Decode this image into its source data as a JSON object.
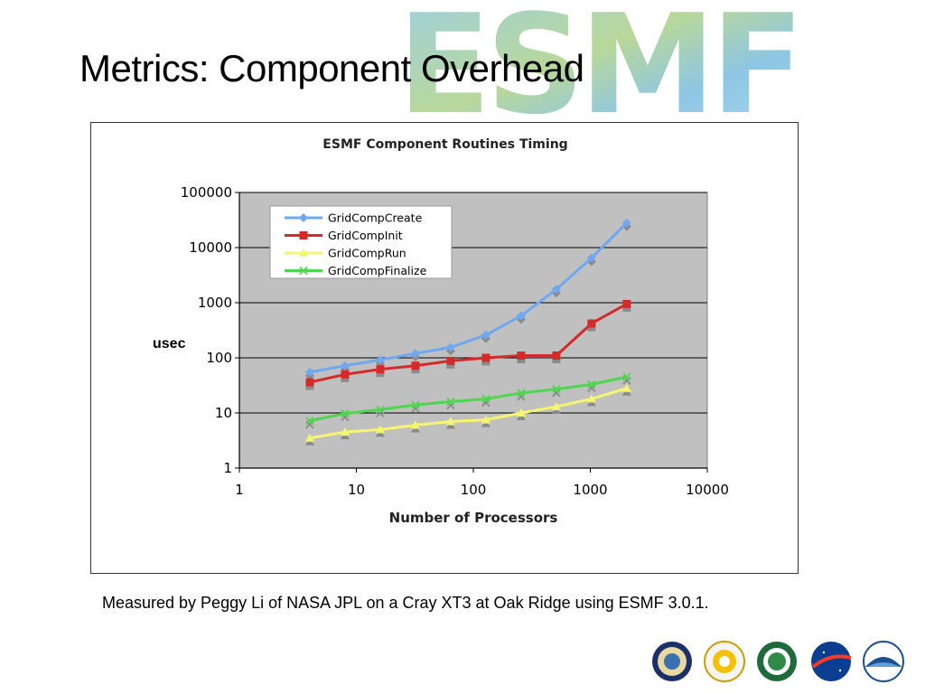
{
  "slide": {
    "title": "Metrics: Component Overhead",
    "caption": "Measured by Peggy Li of NASA JPL on a Cray XT3 at Oak Ridge using ESMF 3.0.1.",
    "logo_text": "ESMF",
    "agency_logos": [
      "department-of-defense-seal",
      "national-science-foundation-seal",
      "department-of-energy-seal",
      "nasa-logo",
      "noaa-logo"
    ]
  },
  "chart_data": {
    "type": "line",
    "title": "ESMF Component Routines Timing",
    "xlabel": "Number of Processors",
    "ylabel": "usec",
    "x_scale": "log",
    "y_scale": "log",
    "xlim": [
      1,
      10000
    ],
    "ylim": [
      1,
      100000
    ],
    "x_ticks": [
      "1",
      "10",
      "100",
      "1000",
      "10000"
    ],
    "y_ticks": [
      "1",
      "10",
      "100",
      "1000",
      "10000",
      "100000"
    ],
    "grid": "horizontal",
    "plot_background": "#c0c0c0",
    "legend_position": "top-left",
    "x": [
      4,
      8,
      16,
      32,
      64,
      128,
      256,
      512,
      1024,
      2048
    ],
    "series": [
      {
        "name": "GridCompCreate",
        "color": "#6fa8f0",
        "marker": "diamond",
        "values": [
          55,
          72,
          92,
          120,
          155,
          260,
          580,
          1750,
          6500,
          28000
        ]
      },
      {
        "name": "GridCompInit",
        "color": "#d42a2a",
        "marker": "square",
        "values": [
          36,
          50,
          62,
          72,
          88,
          100,
          110,
          110,
          420,
          950
        ]
      },
      {
        "name": "GridCompRun",
        "color": "#f5f570",
        "marker": "triangle",
        "values": [
          3.5,
          4.5,
          5.0,
          6.0,
          7.0,
          7.5,
          10,
          13,
          18,
          28
        ]
      },
      {
        "name": "GridCompFinalize",
        "color": "#4fd64f",
        "marker": "x",
        "values": [
          7.2,
          9.8,
          11.5,
          14,
          16,
          18,
          23,
          27,
          33,
          45
        ]
      }
    ]
  }
}
